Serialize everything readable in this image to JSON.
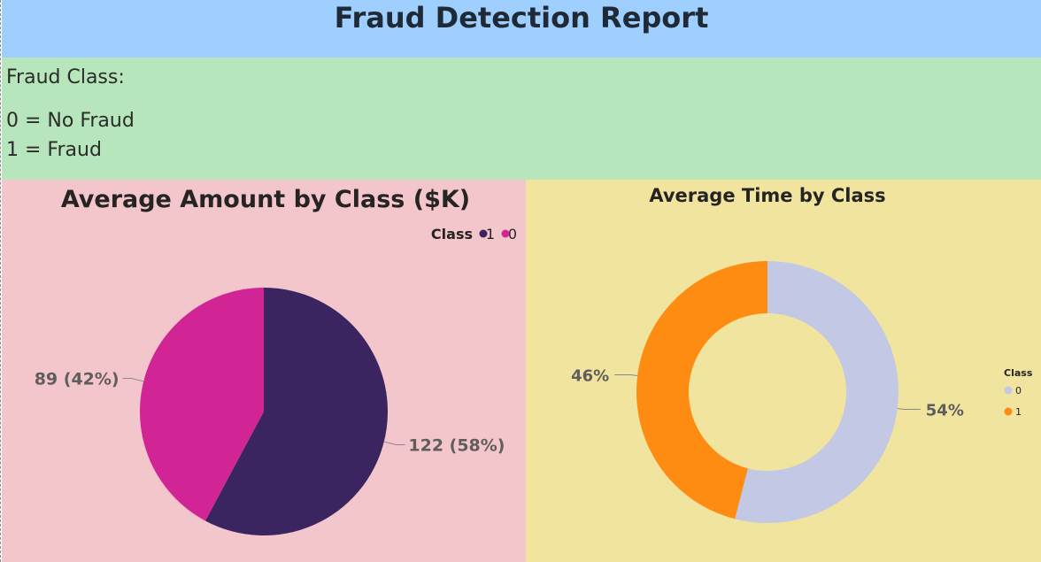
{
  "header": {
    "title": "Fraud Detection Report"
  },
  "info": {
    "heading": "Fraud Class:",
    "line1": "0 = No Fraud",
    "line2": "1 = Fraud"
  },
  "colors": {
    "header_bg": "#9fcfff",
    "info_bg": "#b8e6bc",
    "left_panel_bg": "#f3c6cc",
    "right_panel_bg": "#f1e49e",
    "class1_amount": "#3a2560",
    "class0_amount": "#d12595",
    "class0_time": "#c3c8e4",
    "class1_time": "#ff8c12"
  },
  "chart_data": [
    {
      "type": "pie",
      "title": "Average Amount by Class ($K)",
      "legend": {
        "title": "Class",
        "placement": "top-right",
        "entries": [
          "1",
          "0"
        ]
      },
      "categories": [
        "1",
        "0"
      ],
      "values": [
        122,
        89
      ],
      "percents": [
        58,
        42
      ],
      "labels": [
        "122 (58%)",
        "89 (42%)"
      ],
      "colors": [
        "#3a2560",
        "#d12595"
      ]
    },
    {
      "type": "donut",
      "title": "Average Time by Class",
      "legend": {
        "title": "Class",
        "placement": "right",
        "entries": [
          "0",
          "1"
        ]
      },
      "categories": [
        "0",
        "1"
      ],
      "percents": [
        54,
        46
      ],
      "labels": [
        "54%",
        "46%"
      ],
      "colors": [
        "#c3c8e4",
        "#ff8c12"
      ]
    }
  ]
}
